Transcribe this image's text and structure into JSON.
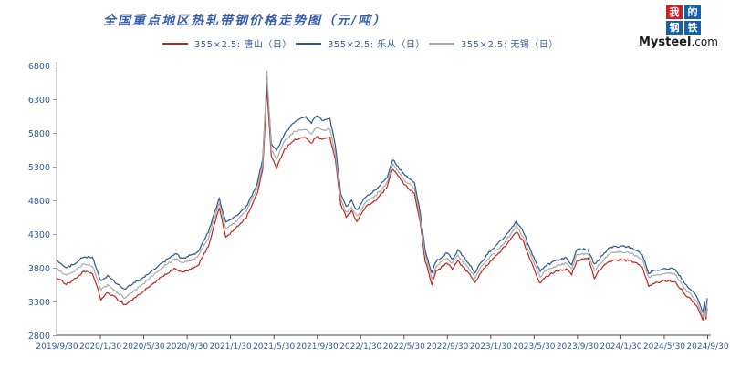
{
  "header": {
    "title": "全国重点地区热轧带钢价格走势图（元/吨）",
    "logo": {
      "chars": [
        "我",
        "的",
        "钢",
        "铁"
      ],
      "domain": "Mysteel",
      "domain_suffix": ".com",
      "red": "#cc2127",
      "blue": "#1560a8"
    }
  },
  "legend": [
    {
      "label": "355×2.5: 唐山（日）",
      "color": "#c0251c"
    },
    {
      "label": "355×2.5: 乐从（日）",
      "color": "#27568f"
    },
    {
      "label": "355×2.5: 无锡（日）",
      "color": "#aaaaaa"
    }
  ],
  "chart_data": {
    "type": "line",
    "title": "全国重点地区热轧带钢价格走势图（元/吨）",
    "xlabel": "",
    "ylabel": "",
    "grid": false,
    "legend_position": "top",
    "ylim": [
      2800,
      6800
    ],
    "yticks": [
      2800,
      3300,
      3800,
      4300,
      4800,
      5300,
      5800,
      6300,
      6800
    ],
    "xtick_labels": [
      "2019/9/30",
      "2020/1/30",
      "2020/5/30",
      "2020/9/30",
      "2021/1/30",
      "2021/5/30",
      "2021/9/30",
      "2022/1/30",
      "2022/5/30",
      "2022/9/30",
      "2023/1/30",
      "2023/5/30",
      "2023/9/30",
      "2024/1/30",
      "2024/5/30",
      "2024/9/30"
    ],
    "xtick_months": [
      0,
      4,
      8,
      12,
      16,
      20,
      24,
      28,
      32,
      36,
      40,
      44,
      48,
      52,
      56,
      60
    ],
    "x_unit": "months since 2019/9/30",
    "x_range": [
      0,
      60
    ],
    "x": [
      0,
      0.9,
      1.5,
      2.5,
      3.3,
      4.1,
      4.7,
      5.5,
      6.3,
      7,
      8,
      9,
      10,
      11,
      11.5,
      12,
      13,
      14,
      15,
      15.6,
      16.5,
      17.5,
      18.5,
      19,
      19.4,
      19.8,
      20.3,
      21,
      22,
      23,
      23.5,
      24,
      24.5,
      25.2,
      25.7,
      26.2,
      26.7,
      27.2,
      27.7,
      28.5,
      29.5,
      30.5,
      31,
      32,
      33,
      33.5,
      34,
      34.6,
      35,
      36,
      36.5,
      37,
      38,
      38.6,
      39,
      40,
      41,
      42,
      42.4,
      43,
      44,
      44.6,
      45,
      46,
      47,
      47.5,
      48,
      49,
      49.6,
      50,
      51,
      52,
      53,
      54,
      54.6,
      55,
      56,
      57,
      58,
      59,
      59.6,
      59.75,
      59.9,
      60
    ],
    "series": [
      {
        "name": "355×2.5: 唐山（日）",
        "color": "#c0251c",
        "values": [
          3650,
          3560,
          3610,
          3740,
          3720,
          3330,
          3430,
          3350,
          3250,
          3330,
          3450,
          3570,
          3700,
          3790,
          3730,
          3750,
          3820,
          4120,
          4700,
          4250,
          4380,
          4550,
          4900,
          5250,
          6480,
          5450,
          5280,
          5560,
          5700,
          5730,
          5650,
          5750,
          5700,
          5740,
          5400,
          4750,
          4560,
          4640,
          4490,
          4700,
          4810,
          5000,
          5270,
          5050,
          4900,
          4500,
          3900,
          3550,
          3750,
          3870,
          3790,
          3900,
          3720,
          3580,
          3700,
          3900,
          4050,
          4250,
          4330,
          4200,
          3800,
          3560,
          3650,
          3750,
          3780,
          3700,
          3900,
          3950,
          3650,
          3750,
          3900,
          3920,
          3900,
          3820,
          3520,
          3560,
          3610,
          3600,
          3400,
          3250,
          3020,
          3180,
          3030,
          3200
        ]
      },
      {
        "name": "355×2.5: 乐从（日）",
        "color": "#27568f",
        "values": [
          3920,
          3790,
          3850,
          3960,
          3950,
          3600,
          3680,
          3570,
          3480,
          3560,
          3650,
          3780,
          3900,
          4010,
          3940,
          3960,
          4030,
          4330,
          4830,
          4470,
          4560,
          4700,
          5050,
          5400,
          6600,
          5650,
          5530,
          5780,
          5980,
          6030,
          5950,
          6060,
          5980,
          6010,
          5620,
          4900,
          4700,
          4790,
          4650,
          4850,
          4960,
          5150,
          5410,
          5190,
          5060,
          4650,
          4050,
          3720,
          3900,
          4020,
          3930,
          4060,
          3870,
          3720,
          3850,
          4050,
          4200,
          4400,
          4490,
          4350,
          3950,
          3740,
          3820,
          3900,
          3950,
          3850,
          4080,
          4070,
          3850,
          3920,
          4100,
          4120,
          4100,
          4000,
          3720,
          3750,
          3790,
          3780,
          3550,
          3390,
          3140,
          3280,
          3150,
          3350
        ]
      },
      {
        "name": "355×2.5: 无锡（日）",
        "color": "#aaaaaa",
        "values": [
          3790,
          3680,
          3730,
          3850,
          3830,
          3470,
          3540,
          3450,
          3350,
          3440,
          3560,
          3700,
          3830,
          3940,
          3870,
          3890,
          3960,
          4240,
          4770,
          4380,
          4480,
          4640,
          4980,
          5330,
          6720,
          5550,
          5400,
          5680,
          5830,
          5860,
          5790,
          5880,
          5830,
          5860,
          5500,
          4820,
          4620,
          4700,
          4560,
          4770,
          4880,
          5070,
          5340,
          5110,
          4980,
          4570,
          3970,
          3640,
          3820,
          3950,
          3860,
          3980,
          3790,
          3650,
          3770,
          3970,
          4120,
          4320,
          4420,
          4270,
          3870,
          3660,
          3740,
          3820,
          3870,
          3780,
          4000,
          4010,
          3760,
          3840,
          4010,
          4040,
          4020,
          3930,
          3650,
          3680,
          3720,
          3710,
          3480,
          3320,
          3070,
          3210,
          3080,
          3270
        ]
      }
    ]
  }
}
